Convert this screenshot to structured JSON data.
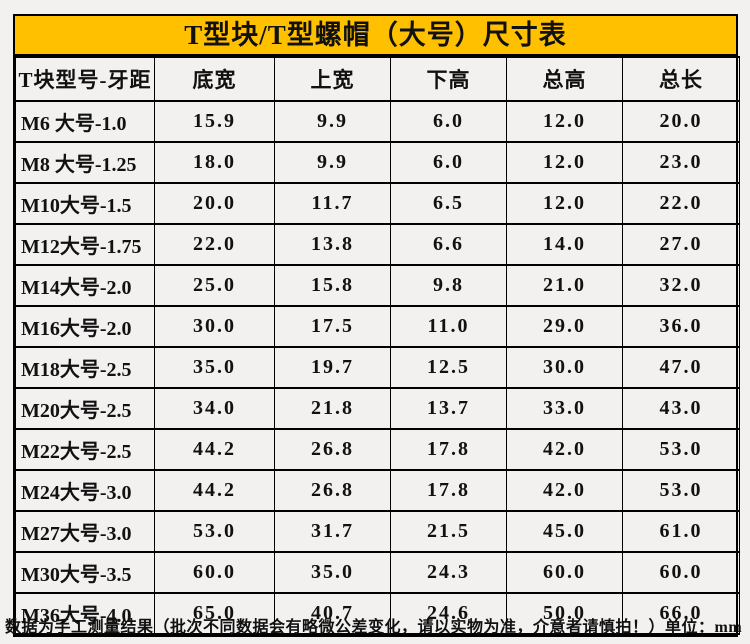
{
  "chart_data": {
    "type": "table",
    "title": "T型块/T型螺帽（大号）尺寸表",
    "columns": [
      "T块型号-牙距",
      "底宽",
      "上宽",
      "下高",
      "总高",
      "总长"
    ],
    "rows": [
      [
        "M6 大号-1.0",
        "15.9",
        "9.9",
        "6.0",
        "12.0",
        "20.0"
      ],
      [
        "M8 大号-1.25",
        "18.0",
        "9.9",
        "6.0",
        "12.0",
        "23.0"
      ],
      [
        "M10大号-1.5",
        "20.0",
        "11.7",
        "6.5",
        "12.0",
        "22.0"
      ],
      [
        "M12大号-1.75",
        "22.0",
        "13.8",
        "6.6",
        "14.0",
        "27.0"
      ],
      [
        "M14大号-2.0",
        "25.0",
        "15.8",
        "9.8",
        "21.0",
        "32.0"
      ],
      [
        "M16大号-2.0",
        "30.0",
        "17.5",
        "11.0",
        "29.0",
        "36.0"
      ],
      [
        "M18大号-2.5",
        "35.0",
        "19.7",
        "12.5",
        "30.0",
        "47.0"
      ],
      [
        "M20大号-2.5",
        "34.0",
        "21.8",
        "13.7",
        "33.0",
        "43.0"
      ],
      [
        "M22大号-2.5",
        "44.2",
        "26.8",
        "17.8",
        "42.0",
        "53.0"
      ],
      [
        "M24大号-3.0",
        "44.2",
        "26.8",
        "17.8",
        "42.0",
        "53.0"
      ],
      [
        "M27大号-3.0",
        "53.0",
        "31.7",
        "21.5",
        "45.0",
        "61.0"
      ],
      [
        "M30大号-3.5",
        "60.0",
        "35.0",
        "24.3",
        "60.0",
        "60.0"
      ],
      [
        "M36大号-4.0",
        "65.0",
        "40.7",
        "24.6",
        "50.0",
        "66.0"
      ]
    ],
    "footnote": "数据为手工测量结果（批次不同数据会有略微公差变化，请以实物为准，介意者请慎拍！）单位：mm",
    "unit": "mm",
    "legend": "none",
    "grid": "full-borders"
  },
  "colors": {
    "title_bg": "#FFC000",
    "border": "#000000",
    "page_bg": "#F2F1EF",
    "text": "#111111"
  }
}
